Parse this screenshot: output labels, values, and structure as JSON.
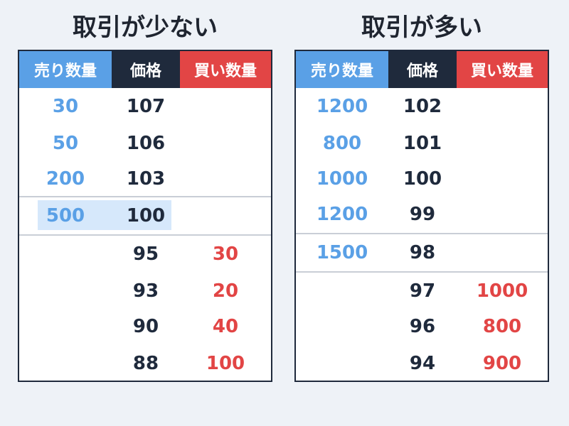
{
  "left": {
    "title": "取引が少ない",
    "headers": {
      "sell": "売り数量",
      "price": "価格",
      "buy": "買い数量"
    },
    "rows": [
      {
        "sell": "30",
        "price": "107",
        "buy": ""
      },
      {
        "sell": "50",
        "price": "106",
        "buy": ""
      },
      {
        "sell": "200",
        "price": "103",
        "buy": ""
      },
      {
        "sell": "500",
        "price": "100",
        "buy": ""
      },
      {
        "sell": "",
        "price": "95",
        "buy": "30"
      },
      {
        "sell": "",
        "price": "93",
        "buy": "20"
      },
      {
        "sell": "",
        "price": "90",
        "buy": "40"
      },
      {
        "sell": "",
        "price": "88",
        "buy": "100"
      }
    ]
  },
  "right": {
    "title": "取引が多い",
    "headers": {
      "sell": "売り数量",
      "price": "価格",
      "buy": "買い数量"
    },
    "rows": [
      {
        "sell": "1200",
        "price": "102",
        "buy": ""
      },
      {
        "sell": "800",
        "price": "101",
        "buy": ""
      },
      {
        "sell": "1000",
        "price": "100",
        "buy": ""
      },
      {
        "sell": "1200",
        "price": "99",
        "buy": ""
      },
      {
        "sell": "1500",
        "price": "98",
        "buy": ""
      },
      {
        "sell": "",
        "price": "97",
        "buy": "1000"
      },
      {
        "sell": "",
        "price": "96",
        "buy": "800"
      },
      {
        "sell": "",
        "price": "94",
        "buy": "900"
      }
    ]
  },
  "colors": {
    "sell": "#5aa0e6",
    "price": "#1f2a3c",
    "buy": "#e24545",
    "highlight": "#d6e8fb"
  }
}
